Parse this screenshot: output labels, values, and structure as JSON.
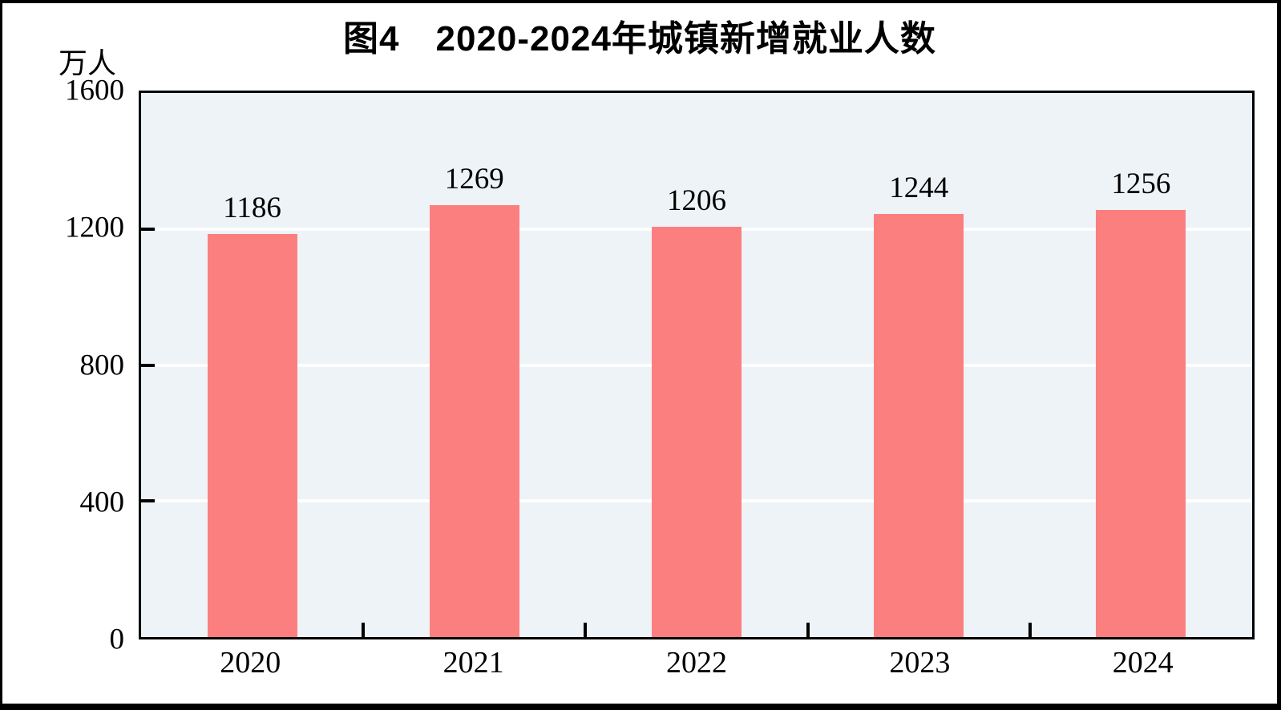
{
  "chart": {
    "frame_border_color": "#000000",
    "text_color": "#000000"
  },
  "chart_data": {
    "type": "bar",
    "title": "图4　2020-2024年城镇新增就业人数",
    "categories": [
      "2020",
      "2021",
      "2022",
      "2023",
      "2024"
    ],
    "values": [
      1186,
      1269,
      1206,
      1244,
      1256
    ],
    "xlabel": "",
    "ylabel": "万人",
    "ylim": [
      0,
      1600
    ],
    "yticks": [
      0,
      400,
      800,
      1200,
      1600
    ],
    "grid": true,
    "legend": false,
    "data_labels": true,
    "bar_color": "#fc7f7f",
    "plot_bg": "#edf3f7",
    "gridline_color": "#ffffff",
    "axis_color": "#000000"
  }
}
